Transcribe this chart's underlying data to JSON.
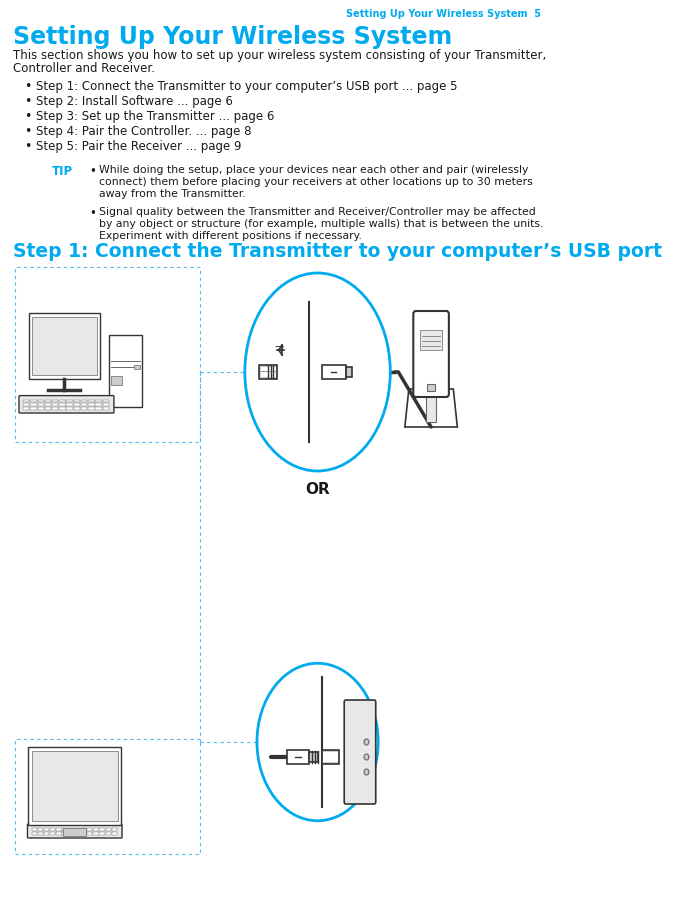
{
  "header_text": "Setting Up Your Wireless System  5",
  "main_title": "Setting Up Your Wireless System",
  "intro_line1": "This section shows you how to set up your wireless system consisting of your Transmitter,",
  "intro_line2": "Controller and Receiver.",
  "bullet_items": [
    "Step 1: Connect the Transmitter to your computer’s USB port ... page 5",
    "Step 2: Install Software ... page 6",
    "Step 3: Set up the Transmitter ... page 6",
    "Step 4: Pair the Controller. ... page 8",
    "Step 5: Pair the Receiver ... page 9"
  ],
  "tip_label": "TIP",
  "tip_bullet1_line1": "While doing the setup, place your devices near each other and pair (wirelessly",
  "tip_bullet1_line2": "connect) them before placing your receivers at other locations up to 30 meters",
  "tip_bullet1_line3": "away from the Transmitter.",
  "tip_bullet2_line1": "Signal quality between the Transmitter and Receiver/Controller may be affected",
  "tip_bullet2_line2": "by any object or structure (for example, multiple walls) that is between the units.",
  "tip_bullet2_line3": "Experiment with different positions if necessary.",
  "step1_title": "Step 1: Connect the Transmitter to your computer’s USB port",
  "or_text": "OR",
  "blue_color": "#00AAEE",
  "dark_color": "#1a1a1a",
  "bg_color": "#FFFFFF",
  "dash_blue": "#55BBEE",
  "gray_line": "#888888",
  "dark_gray": "#333333",
  "mid_gray": "#666666",
  "light_gray": "#cccccc",
  "lighter_gray": "#e8e8e8"
}
